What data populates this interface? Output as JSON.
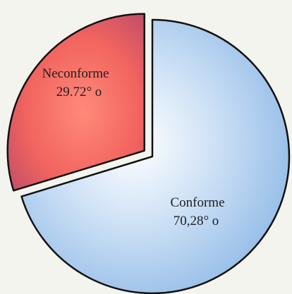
{
  "chart_data": {
    "type": "pie",
    "title": "",
    "slices": [
      {
        "label": "Conforme",
        "value_text": "70,28° o",
        "value": 70.28,
        "color": "#9cc4ea",
        "exploded": false
      },
      {
        "label": "Neconforme",
        "value_text": "29.72° o",
        "value": 29.72,
        "color": "#e05a5e",
        "exploded": true
      }
    ],
    "legend": "none"
  }
}
